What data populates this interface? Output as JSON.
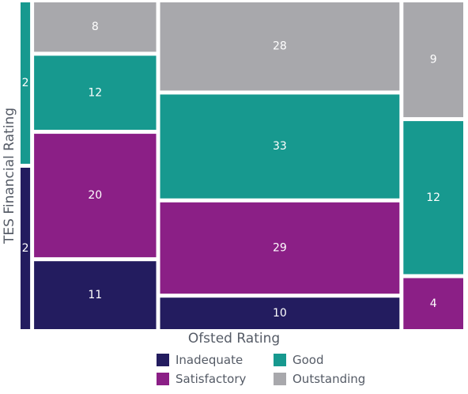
{
  "chart_data": {
    "type": "mosaic",
    "xlabel": "Ofsted Rating",
    "ylabel": "TES Financial Rating",
    "categories": [
      "Inadequate",
      "Satisfactory",
      "Good",
      "Outstanding"
    ],
    "columns": [
      {
        "segments": [
          {
            "category": "Inadequate",
            "value": 2
          },
          {
            "category": "Good",
            "value": 2
          }
        ]
      },
      {
        "segments": [
          {
            "category": "Inadequate",
            "value": 11
          },
          {
            "category": "Satisfactory",
            "value": 20
          },
          {
            "category": "Good",
            "value": 12
          },
          {
            "category": "Outstanding",
            "value": 8
          }
        ]
      },
      {
        "segments": [
          {
            "category": "Inadequate",
            "value": 10
          },
          {
            "category": "Satisfactory",
            "value": 29
          },
          {
            "category": "Good",
            "value": 33
          },
          {
            "category": "Outstanding",
            "value": 28
          }
        ]
      },
      {
        "segments": [
          {
            "category": "Satisfactory",
            "value": 4
          },
          {
            "category": "Good",
            "value": 12
          },
          {
            "category": "Outstanding",
            "value": 9
          }
        ]
      }
    ],
    "colors": {
      "Inadequate": "#231c5f",
      "Satisfactory": "#8b1f86",
      "Good": "#17998f",
      "Outstanding": "#a8a8ac"
    },
    "legend_position": "bottom"
  }
}
